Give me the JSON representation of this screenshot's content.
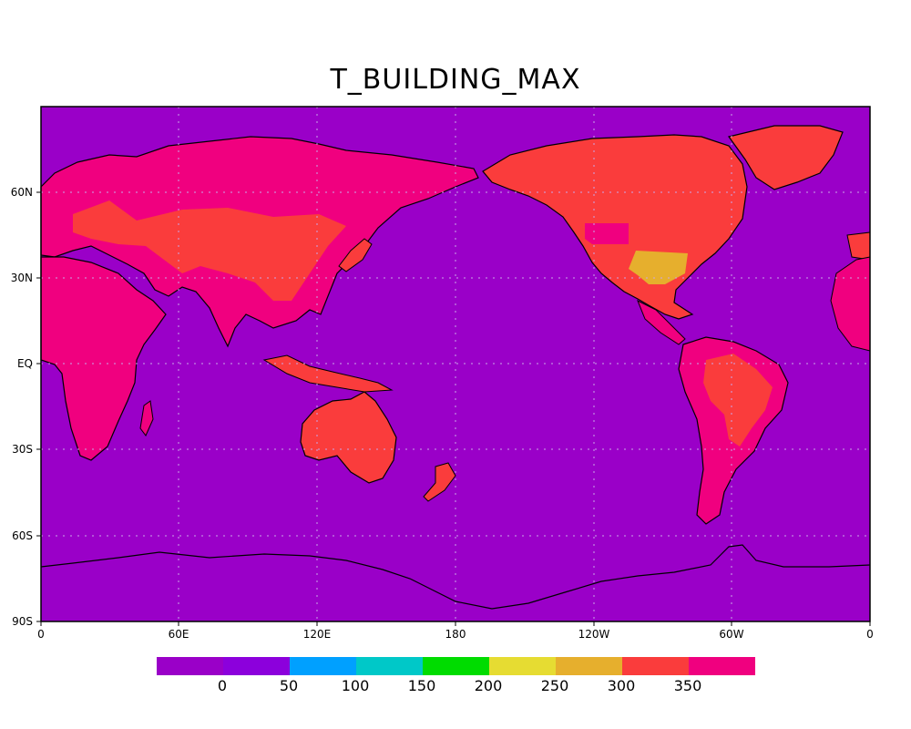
{
  "title": "T_BUILDING_MAX",
  "map": {
    "ocean_color": "#9a00c8",
    "gridline_color": "#c9a6e8",
    "lat_labels": [
      "60N",
      "30N",
      "EQ",
      "30S",
      "60S",
      "90S"
    ],
    "lon_labels": [
      "0",
      "60E",
      "120E",
      "180",
      "120W",
      "60W",
      "0"
    ]
  },
  "colorbar": {
    "colors": [
      "#9a00c8",
      "#8c00dc",
      "#00a0ff",
      "#00c8c8",
      "#00dc00",
      "#e6dc32",
      "#e6af2d",
      "#fa3c3c",
      "#f0007f"
    ],
    "labels": [
      "0",
      "50",
      "100",
      "150",
      "200",
      "250",
      "300",
      "350"
    ]
  },
  "legend_categories": {
    "land_high": "#f0007f",
    "land_red": "#fa3c3c",
    "land_orange": "#e6af2d"
  }
}
